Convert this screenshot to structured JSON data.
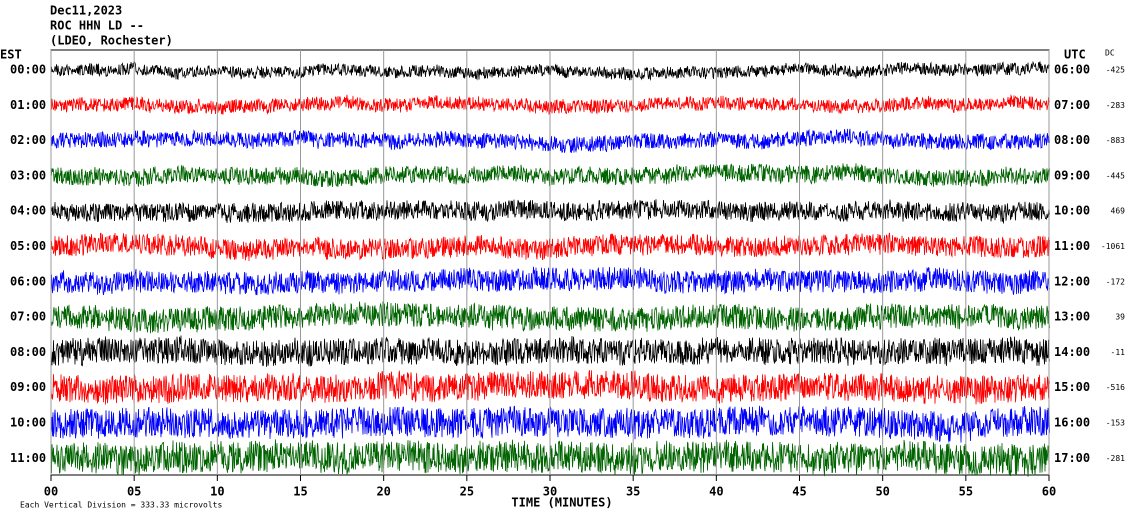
{
  "chart_data": {
    "type": "helicorder",
    "header": [
      "Dec11,2023",
      "ROC HHN LD --",
      "(LDEO, Rochester)"
    ],
    "left_axis_title": "EST",
    "right_axis_title": "UTC",
    "dc_title": "DC",
    "x_label": "TIME (MINUTES)",
    "footer": "Each Vertical Division =  333.33 microvolts",
    "xlim": [
      0,
      60
    ],
    "xticks": [
      {
        "value": 0,
        "label": "00"
      },
      {
        "value": 5,
        "label": "05"
      },
      10,
      15,
      20,
      25,
      30,
      35,
      40,
      45,
      50,
      55,
      60
    ],
    "grid": true,
    "rows": [
      {
        "est": "00:00",
        "utc": "06:00",
        "dc": -425,
        "color": "#000000"
      },
      {
        "est": "01:00",
        "utc": "07:00",
        "dc": -283,
        "color": "#ff0000"
      },
      {
        "est": "02:00",
        "utc": "08:00",
        "dc": -883,
        "color": "#0000ff"
      },
      {
        "est": "03:00",
        "utc": "09:00",
        "dc": -445,
        "color": "#006400"
      },
      {
        "est": "04:00",
        "utc": "10:00",
        "dc": 469,
        "color": "#000000"
      },
      {
        "est": "05:00",
        "utc": "11:00",
        "dc": -1061,
        "color": "#ff0000"
      },
      {
        "est": "06:00",
        "utc": "12:00",
        "dc": -172,
        "color": "#0000ff"
      },
      {
        "est": "07:00",
        "utc": "13:00",
        "dc": 39,
        "color": "#006400"
      },
      {
        "est": "08:00",
        "utc": "14:00",
        "dc": -11,
        "color": "#000000"
      },
      {
        "est": "09:00",
        "utc": "15:00",
        "dc": -516,
        "color": "#ff0000"
      },
      {
        "est": "10:00",
        "utc": "16:00",
        "dc": -153,
        "color": "#0000ff"
      },
      {
        "est": "11:00",
        "utc": "17:00",
        "dc": -281,
        "color": "#006400"
      }
    ]
  }
}
